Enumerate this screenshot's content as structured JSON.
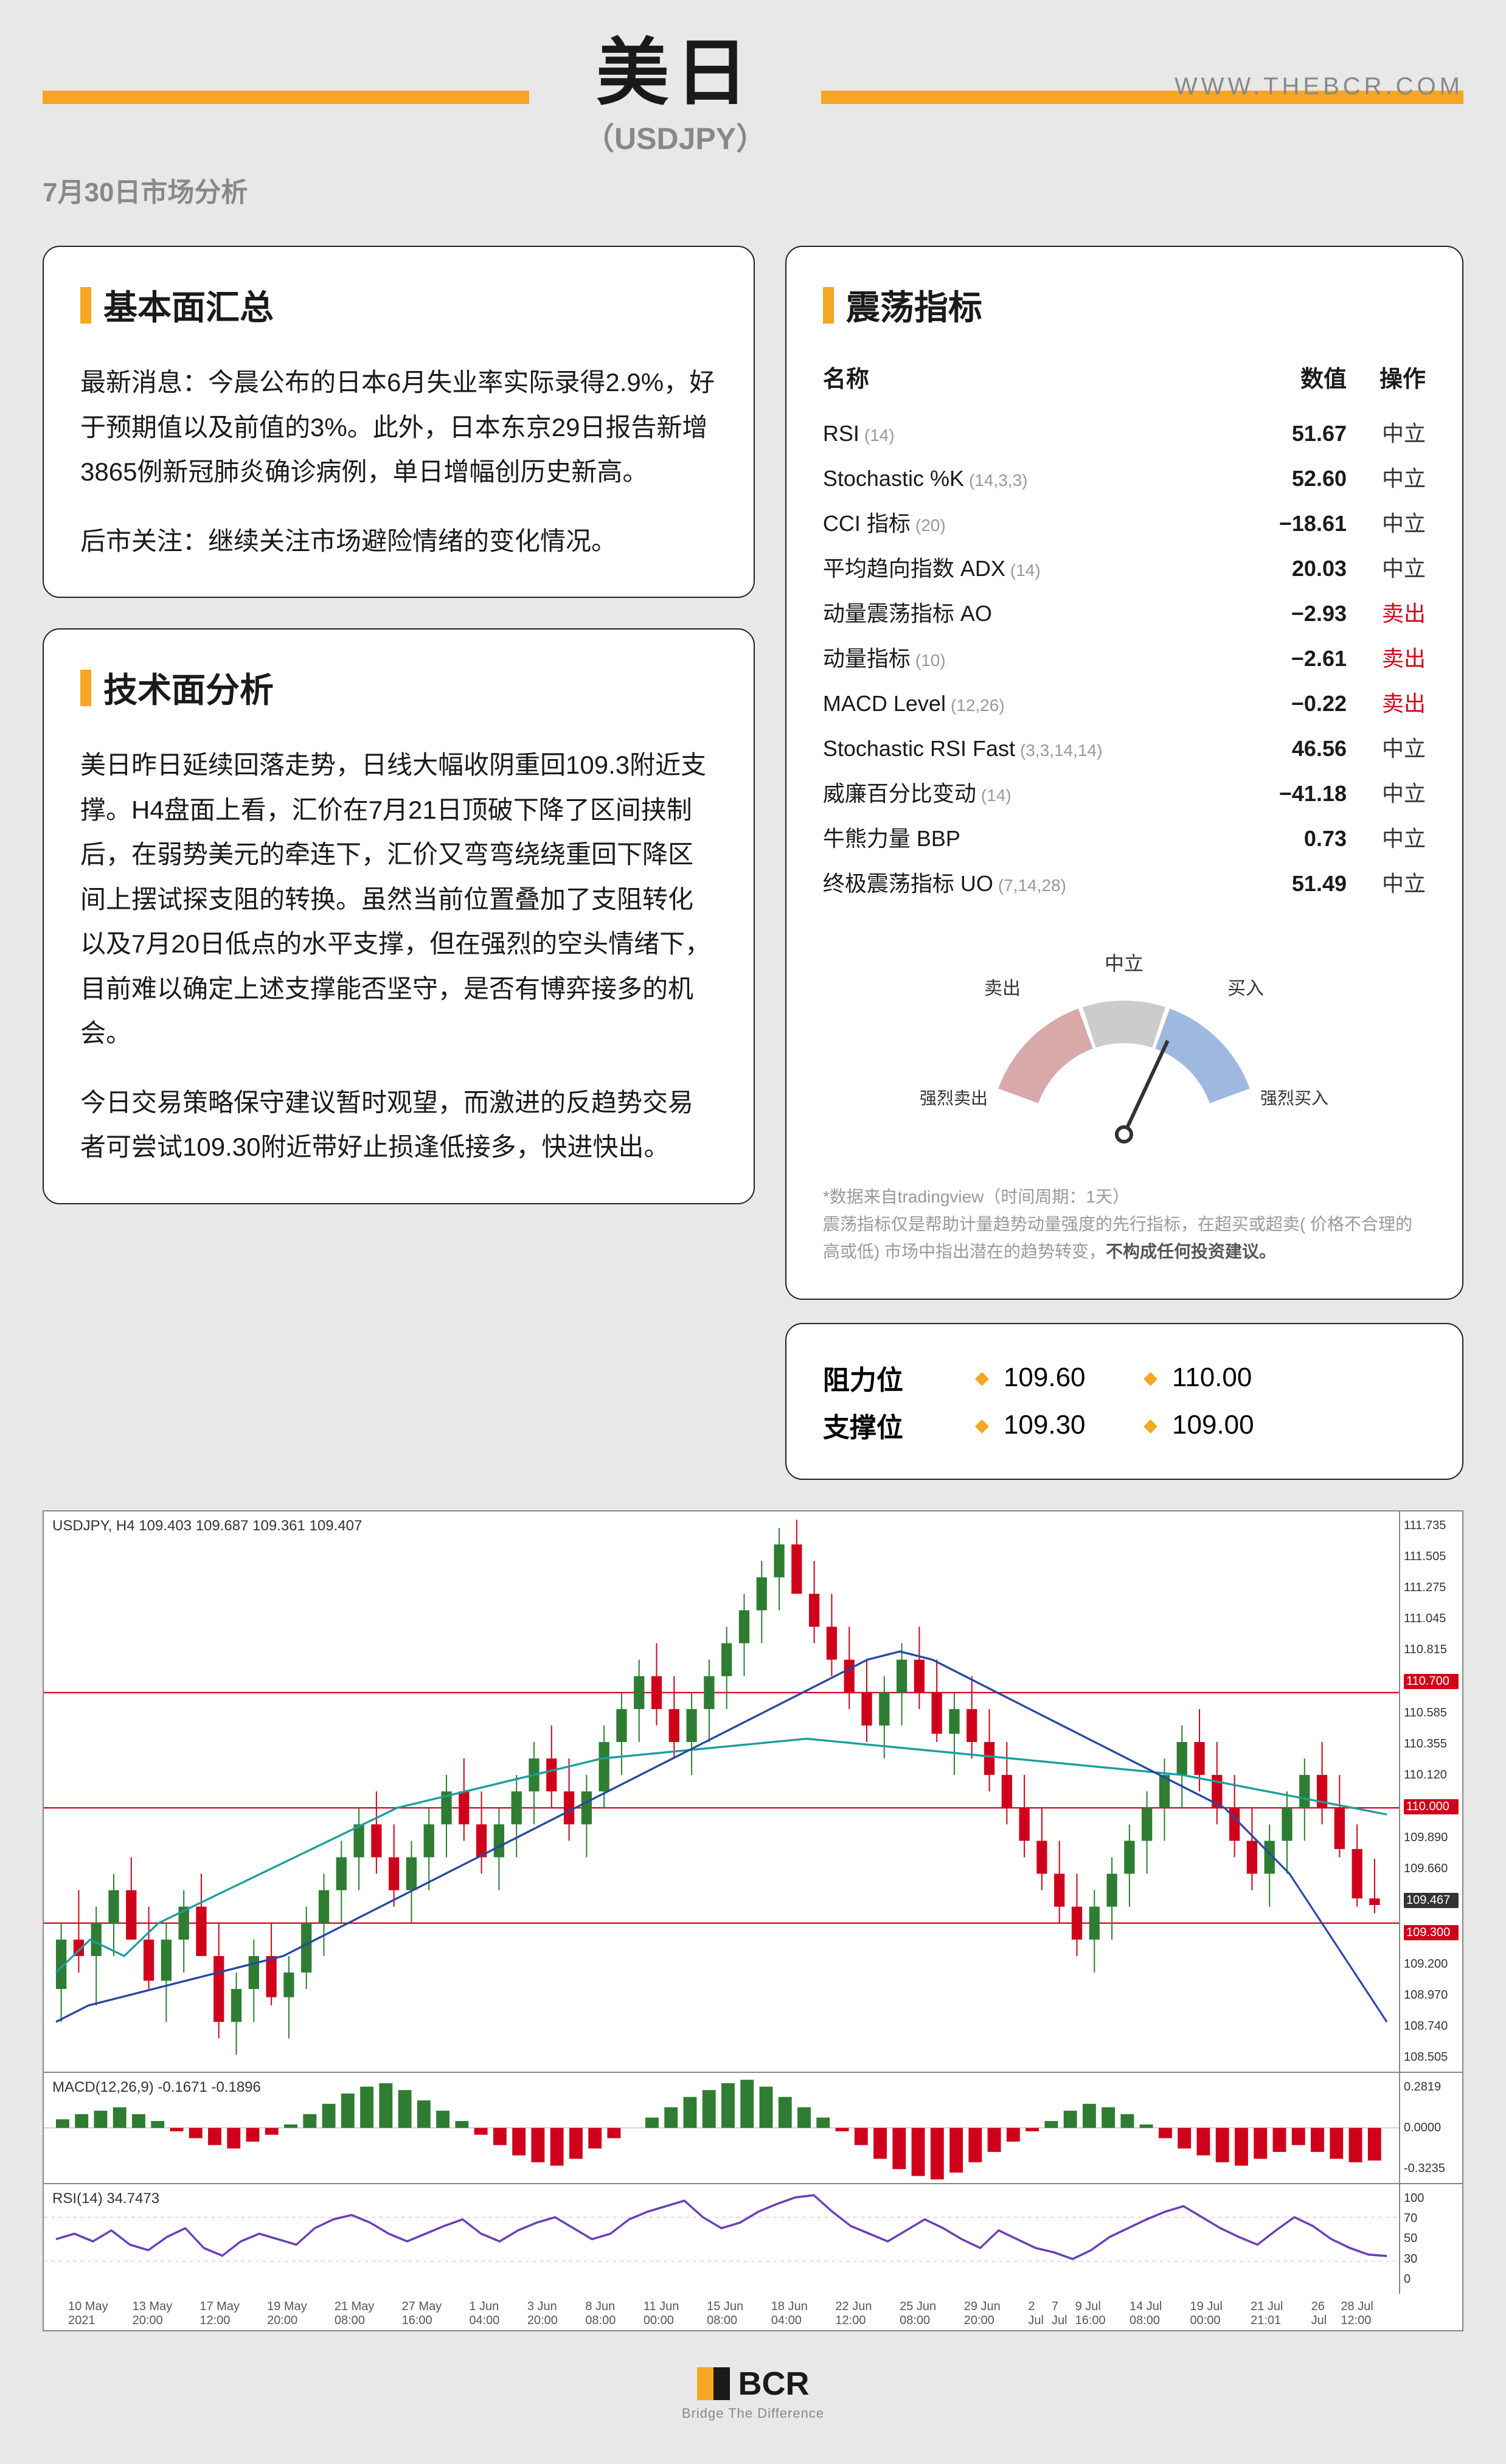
{
  "header": {
    "date_label": "7月30日市场分析",
    "main_title": "美日",
    "sub_title": "（USDJPY）",
    "url": "WWW.THEBCR.COM",
    "accent_color": "#f5a623"
  },
  "fundamentals": {
    "title": "基本面汇总",
    "paragraphs": [
      "最新消息：今晨公布的日本6月失业率实际录得2.9%，好于预期值以及前值的3%。此外，日本东京29日报告新增3865例新冠肺炎确诊病例，单日增幅创历史新高。",
      "后市关注：继续关注市场避险情绪的变化情况。"
    ]
  },
  "technical": {
    "title": "技术面分析",
    "paragraphs": [
      "美日昨日延续回落走势，日线大幅收阴重回109.3附近支撑。H4盘面上看，汇价在7月21日顶破下降了区间挟制后，在弱势美元的牵连下，汇价又弯弯绕绕重回下降区间上摆试探支阻的转换。虽然当前位置叠加了支阻转化以及7月20日低点的水平支撑，但在强烈的空头情绪下，目前难以确定上述支撑能否坚守，是否有博弈接多的机会。",
      "今日交易策略保守建议暂时观望，而激进的反趋势交易者可尝试109.30附近带好止损逢低接多，快进快出。"
    ]
  },
  "oscillators": {
    "title": "震荡指标",
    "head": {
      "c1": "名称",
      "c2": "数值",
      "c3": "操作"
    },
    "rows": [
      {
        "name": "RSI",
        "param": "(14)",
        "value": "51.67",
        "action": "中立",
        "cls": "act-neutral"
      },
      {
        "name": "Stochastic %K",
        "param": "(14,3,3)",
        "value": "52.60",
        "action": "中立",
        "cls": "act-neutral"
      },
      {
        "name": "CCI 指标",
        "param": "(20)",
        "value": "−18.61",
        "action": "中立",
        "cls": "act-neutral"
      },
      {
        "name": "平均趋向指数 ADX",
        "param": "(14)",
        "value": "20.03",
        "action": "中立",
        "cls": "act-neutral"
      },
      {
        "name": "动量震荡指标 AO",
        "param": "",
        "value": "−2.93",
        "action": "卖出",
        "cls": "act-sell"
      },
      {
        "name": "动量指标",
        "param": "(10)",
        "value": "−2.61",
        "action": "卖出",
        "cls": "act-sell"
      },
      {
        "name": "MACD Level",
        "param": "(12,26)",
        "value": "−0.22",
        "action": "卖出",
        "cls": "act-sell"
      },
      {
        "name": "Stochastic RSI Fast",
        "param": "(3,3,14,14)",
        "value": "46.56",
        "action": "中立",
        "cls": "act-neutral"
      },
      {
        "name": "威廉百分比变动",
        "param": "(14)",
        "value": "−41.18",
        "action": "中立",
        "cls": "act-neutral"
      },
      {
        "name": "牛熊力量 BBP",
        "param": "",
        "value": "0.73",
        "action": "中立",
        "cls": "act-neutral"
      },
      {
        "name": "终极震荡指标 UO",
        "param": "(7,14,28)",
        "value": "51.49",
        "action": "中立",
        "cls": "act-neutral"
      }
    ],
    "gauge": {
      "labels": {
        "strong_sell": "强烈卖出",
        "sell": "卖出",
        "neutral": "中立",
        "buy": "买入",
        "strong_buy": "强烈买入"
      },
      "needle_angle_deg": 115,
      "colors": {
        "sell": "#d9a8a8",
        "neutral": "#cccccc",
        "buy": "#9eb8e0",
        "needle": "#333333"
      }
    },
    "disclaimer_p1": "*数据来自tradingview（时间周期：1天）",
    "disclaimer_p2a": "震荡指标仅是帮助计量趋势动量强度的先行指标，在超买或超卖( 价格不合理的高或低) 市场中指出潜在的趋势转变，",
    "disclaimer_p2b": "不构成任何投资建议。"
  },
  "levels": {
    "resistance": {
      "label": "阻力位",
      "v1": "109.60",
      "v2": "110.00"
    },
    "support": {
      "label": "支撑位",
      "v1": "109.30",
      "v2": "109.00"
    }
  },
  "chart": {
    "info_line": "USDJPY, H4  109.403 109.687 109.361 109.407",
    "macd_label": "MACD(12,26,9) -0.1671 -0.1896",
    "rsi_label": "RSI(14) 34.7473",
    "y_ticks": [
      "111.735",
      "111.505",
      "111.275",
      "111.045",
      "110.815",
      "110.700",
      "110.585",
      "110.355",
      "110.120",
      "110.000",
      "109.890",
      "109.660",
      "109.467",
      "109.300",
      "109.200",
      "108.970",
      "108.740",
      "108.505"
    ],
    "y_highlight_red": [
      "110.700",
      "110.000",
      "109.300"
    ],
    "y_highlight_dark": [
      "109.467"
    ],
    "macd_y": [
      "0.2819",
      "0.0000",
      "-0.3235"
    ],
    "rsi_y": [
      "100",
      "70",
      "50",
      "30",
      "0"
    ],
    "x_ticks": [
      "10 May 2021",
      "13 May 20:00",
      "17 May 12:00",
      "19 May 20:00",
      "21 May 08:00",
      "27 May 16:00",
      "1 Jun 04:00",
      "3 Jun 20:00",
      "8 Jun 08:00",
      "11 Jun 00:00",
      "15 Jun 08:00",
      "18 Jun 04:00",
      "22 Jun 12:00",
      "25 Jun 08:00",
      "29 Jun 20:00",
      "2 Jul",
      "7 Jul",
      "9 Jul 16:00",
      "14 Jul 08:00",
      "19 Jul 00:00",
      "21 Jul 21:01",
      "26 Jul",
      "28 Jul 12:00"
    ],
    "candles": {
      "n": 120,
      "price_lo": 108.4,
      "price_hi": 111.8,
      "hlines_red": [
        110.7,
        110.0,
        109.3
      ],
      "ma_teal": [
        109.0,
        109.2,
        109.1,
        109.3,
        109.4,
        109.5,
        109.6,
        109.7,
        109.8,
        109.9,
        110.0,
        110.05,
        110.1,
        110.15,
        110.2,
        110.25,
        110.3,
        110.32,
        110.34,
        110.36,
        110.38,
        110.4,
        110.42,
        110.4,
        110.38,
        110.36,
        110.34,
        110.32,
        110.3,
        110.28,
        110.26,
        110.24,
        110.22,
        110.2,
        110.16,
        110.12,
        110.08,
        110.04,
        110.0,
        109.96
      ],
      "ma_blue": [
        108.7,
        108.8,
        108.85,
        108.9,
        108.95,
        109.0,
        109.05,
        109.1,
        109.2,
        109.3,
        109.4,
        109.5,
        109.6,
        109.7,
        109.8,
        109.9,
        110.0,
        110.1,
        110.2,
        110.3,
        110.4,
        110.5,
        110.6,
        110.7,
        110.8,
        110.9,
        110.95,
        110.9,
        110.8,
        110.7,
        110.6,
        110.5,
        110.4,
        110.3,
        110.2,
        110.1,
        110.0,
        109.8,
        109.6,
        109.3,
        109.0,
        108.7
      ],
      "series": [
        {
          "o": 108.9,
          "h": 109.3,
          "l": 108.7,
          "c": 109.2
        },
        {
          "o": 109.2,
          "h": 109.5,
          "l": 109.0,
          "c": 109.1
        },
        {
          "o": 109.1,
          "h": 109.4,
          "l": 108.8,
          "c": 109.3
        },
        {
          "o": 109.3,
          "h": 109.6,
          "l": 109.1,
          "c": 109.5
        },
        {
          "o": 109.5,
          "h": 109.7,
          "l": 109.2,
          "c": 109.2
        },
        {
          "o": 109.2,
          "h": 109.4,
          "l": 108.9,
          "c": 108.95
        },
        {
          "o": 108.95,
          "h": 109.3,
          "l": 108.7,
          "c": 109.2
        },
        {
          "o": 109.2,
          "h": 109.5,
          "l": 109.0,
          "c": 109.4
        },
        {
          "o": 109.4,
          "h": 109.6,
          "l": 109.1,
          "c": 109.1
        },
        {
          "o": 109.1,
          "h": 109.3,
          "l": 108.6,
          "c": 108.7
        },
        {
          "o": 108.7,
          "h": 109.0,
          "l": 108.5,
          "c": 108.9
        },
        {
          "o": 108.9,
          "h": 109.2,
          "l": 108.7,
          "c": 109.1
        },
        {
          "o": 109.1,
          "h": 109.3,
          "l": 108.8,
          "c": 108.85
        },
        {
          "o": 108.85,
          "h": 109.1,
          "l": 108.6,
          "c": 109.0
        },
        {
          "o": 109.0,
          "h": 109.4,
          "l": 108.9,
          "c": 109.3
        },
        {
          "o": 109.3,
          "h": 109.6,
          "l": 109.1,
          "c": 109.5
        },
        {
          "o": 109.5,
          "h": 109.8,
          "l": 109.3,
          "c": 109.7
        },
        {
          "o": 109.7,
          "h": 110.0,
          "l": 109.5,
          "c": 109.9
        },
        {
          "o": 109.9,
          "h": 110.1,
          "l": 109.6,
          "c": 109.7
        },
        {
          "o": 109.7,
          "h": 109.9,
          "l": 109.4,
          "c": 109.5
        },
        {
          "o": 109.5,
          "h": 109.8,
          "l": 109.3,
          "c": 109.7
        },
        {
          "o": 109.7,
          "h": 110.0,
          "l": 109.5,
          "c": 109.9
        },
        {
          "o": 109.9,
          "h": 110.2,
          "l": 109.7,
          "c": 110.1
        },
        {
          "o": 110.1,
          "h": 110.3,
          "l": 109.8,
          "c": 109.9
        },
        {
          "o": 109.9,
          "h": 110.1,
          "l": 109.6,
          "c": 109.7
        },
        {
          "o": 109.7,
          "h": 110.0,
          "l": 109.5,
          "c": 109.9
        },
        {
          "o": 109.9,
          "h": 110.2,
          "l": 109.7,
          "c": 110.1
        },
        {
          "o": 110.1,
          "h": 110.4,
          "l": 109.9,
          "c": 110.3
        },
        {
          "o": 110.3,
          "h": 110.5,
          "l": 110.0,
          "c": 110.1
        },
        {
          "o": 110.1,
          "h": 110.3,
          "l": 109.8,
          "c": 109.9
        },
        {
          "o": 109.9,
          "h": 110.2,
          "l": 109.7,
          "c": 110.1
        },
        {
          "o": 110.1,
          "h": 110.5,
          "l": 110.0,
          "c": 110.4
        },
        {
          "o": 110.4,
          "h": 110.7,
          "l": 110.2,
          "c": 110.6
        },
        {
          "o": 110.6,
          "h": 110.9,
          "l": 110.4,
          "c": 110.8
        },
        {
          "o": 110.8,
          "h": 111.0,
          "l": 110.5,
          "c": 110.6
        },
        {
          "o": 110.6,
          "h": 110.8,
          "l": 110.3,
          "c": 110.4
        },
        {
          "o": 110.4,
          "h": 110.7,
          "l": 110.2,
          "c": 110.6
        },
        {
          "o": 110.6,
          "h": 110.9,
          "l": 110.4,
          "c": 110.8
        },
        {
          "o": 110.8,
          "h": 111.1,
          "l": 110.6,
          "c": 111.0
        },
        {
          "o": 111.0,
          "h": 111.3,
          "l": 110.8,
          "c": 111.2
        },
        {
          "o": 111.2,
          "h": 111.5,
          "l": 111.0,
          "c": 111.4
        },
        {
          "o": 111.4,
          "h": 111.7,
          "l": 111.2,
          "c": 111.6
        },
        {
          "o": 111.6,
          "h": 111.75,
          "l": 111.3,
          "c": 111.3
        },
        {
          "o": 111.3,
          "h": 111.5,
          "l": 111.0,
          "c": 111.1
        },
        {
          "o": 111.1,
          "h": 111.3,
          "l": 110.8,
          "c": 110.9
        },
        {
          "o": 110.9,
          "h": 111.1,
          "l": 110.6,
          "c": 110.7
        },
        {
          "o": 110.7,
          "h": 110.9,
          "l": 110.4,
          "c": 110.5
        },
        {
          "o": 110.5,
          "h": 110.8,
          "l": 110.3,
          "c": 110.7
        },
        {
          "o": 110.7,
          "h": 111.0,
          "l": 110.5,
          "c": 110.9
        },
        {
          "o": 110.9,
          "h": 111.1,
          "l": 110.6,
          "c": 110.7
        },
        {
          "o": 110.7,
          "h": 110.9,
          "l": 110.4,
          "c": 110.45
        },
        {
          "o": 110.45,
          "h": 110.7,
          "l": 110.2,
          "c": 110.6
        },
        {
          "o": 110.6,
          "h": 110.8,
          "l": 110.3,
          "c": 110.4
        },
        {
          "o": 110.4,
          "h": 110.6,
          "l": 110.1,
          "c": 110.2
        },
        {
          "o": 110.2,
          "h": 110.4,
          "l": 109.9,
          "c": 110.0
        },
        {
          "o": 110.0,
          "h": 110.2,
          "l": 109.7,
          "c": 109.8
        },
        {
          "o": 109.8,
          "h": 110.0,
          "l": 109.5,
          "c": 109.6
        },
        {
          "o": 109.6,
          "h": 109.8,
          "l": 109.3,
          "c": 109.4
        },
        {
          "o": 109.4,
          "h": 109.6,
          "l": 109.1,
          "c": 109.2
        },
        {
          "o": 109.2,
          "h": 109.5,
          "l": 109.0,
          "c": 109.4
        },
        {
          "o": 109.4,
          "h": 109.7,
          "l": 109.2,
          "c": 109.6
        },
        {
          "o": 109.6,
          "h": 109.9,
          "l": 109.4,
          "c": 109.8
        },
        {
          "o": 109.8,
          "h": 110.1,
          "l": 109.6,
          "c": 110.0
        },
        {
          "o": 110.0,
          "h": 110.3,
          "l": 109.8,
          "c": 110.2
        },
        {
          "o": 110.2,
          "h": 110.5,
          "l": 110.0,
          "c": 110.4
        },
        {
          "o": 110.4,
          "h": 110.6,
          "l": 110.1,
          "c": 110.2
        },
        {
          "o": 110.2,
          "h": 110.4,
          "l": 109.9,
          "c": 110.0
        },
        {
          "o": 110.0,
          "h": 110.2,
          "l": 109.7,
          "c": 109.8
        },
        {
          "o": 109.8,
          "h": 110.0,
          "l": 109.5,
          "c": 109.6
        },
        {
          "o": 109.6,
          "h": 109.9,
          "l": 109.4,
          "c": 109.8
        },
        {
          "o": 109.8,
          "h": 110.1,
          "l": 109.6,
          "c": 110.0
        },
        {
          "o": 110.0,
          "h": 110.3,
          "l": 109.8,
          "c": 110.2
        },
        {
          "o": 110.2,
          "h": 110.4,
          "l": 109.9,
          "c": 110.0
        },
        {
          "o": 110.0,
          "h": 110.2,
          "l": 109.7,
          "c": 109.75
        },
        {
          "o": 109.75,
          "h": 109.9,
          "l": 109.4,
          "c": 109.45
        },
        {
          "o": 109.45,
          "h": 109.69,
          "l": 109.36,
          "c": 109.41
        }
      ]
    },
    "macd_bars": [
      0.05,
      0.08,
      0.1,
      0.12,
      0.08,
      0.04,
      -0.02,
      -0.06,
      -0.1,
      -0.12,
      -0.08,
      -0.04,
      0.02,
      0.08,
      0.14,
      0.2,
      0.24,
      0.26,
      0.22,
      0.16,
      0.1,
      0.04,
      -0.04,
      -0.1,
      -0.16,
      -0.2,
      -0.22,
      -0.18,
      -0.12,
      -0.06,
      0.0,
      0.06,
      0.12,
      0.18,
      0.22,
      0.26,
      0.28,
      0.24,
      0.18,
      0.12,
      0.06,
      -0.02,
      -0.1,
      -0.18,
      -0.24,
      -0.28,
      -0.3,
      -0.26,
      -0.2,
      -0.14,
      -0.08,
      -0.02,
      0.04,
      0.1,
      0.14,
      0.12,
      0.08,
      0.02,
      -0.06,
      -0.12,
      -0.16,
      -0.2,
      -0.22,
      -0.18,
      -0.14,
      -0.1,
      -0.14,
      -0.18,
      -0.2,
      -0.19
    ],
    "rsi_line": [
      50,
      55,
      48,
      58,
      45,
      40,
      52,
      60,
      42,
      35,
      48,
      55,
      50,
      45,
      60,
      68,
      72,
      65,
      55,
      48,
      55,
      62,
      68,
      55,
      48,
      58,
      65,
      70,
      60,
      50,
      55,
      68,
      75,
      80,
      85,
      70,
      60,
      65,
      75,
      82,
      88,
      90,
      75,
      62,
      55,
      48,
      58,
      68,
      60,
      50,
      42,
      58,
      50,
      42,
      38,
      32,
      40,
      52,
      60,
      68,
      75,
      80,
      70,
      60,
      52,
      45,
      58,
      70,
      62,
      50,
      42,
      36,
      34.7
    ]
  },
  "footer": {
    "brand": "BCR",
    "tagline": "Bridge The Difference"
  }
}
